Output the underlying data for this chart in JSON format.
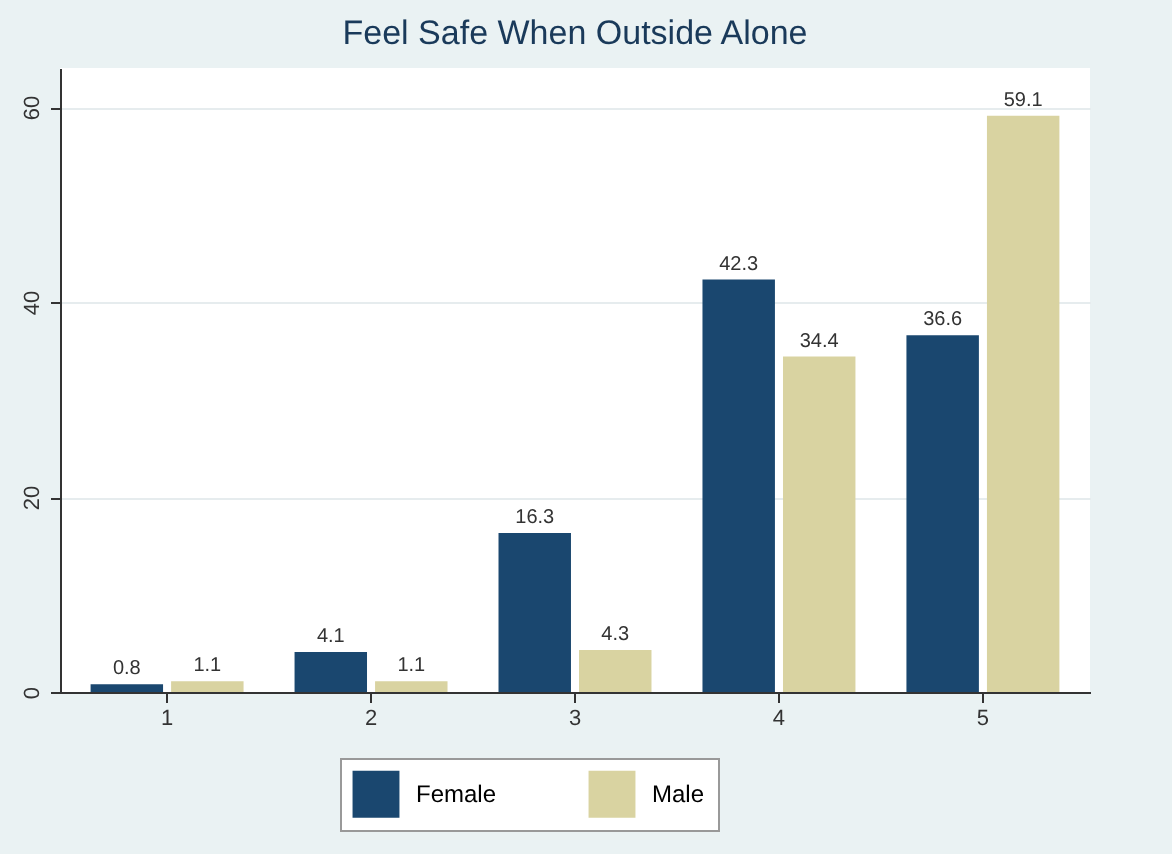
{
  "chart_data": {
    "type": "bar",
    "title": "Feel Safe When Outside Alone",
    "categories": [
      "1",
      "2",
      "3",
      "4",
      "5"
    ],
    "series": [
      {
        "name": "Female",
        "color": "#1a476f",
        "values": [
          0.8,
          4.1,
          16.3,
          42.3,
          36.6
        ]
      },
      {
        "name": "Male",
        "color": "#d9d3a1",
        "values": [
          1.1,
          1.1,
          4.3,
          34.4,
          59.1
        ]
      }
    ],
    "ylim": [
      0,
      64
    ],
    "yticks": [
      0,
      20,
      40,
      60
    ],
    "grid": "y",
    "legend": "bottom",
    "data_labels": true
  }
}
